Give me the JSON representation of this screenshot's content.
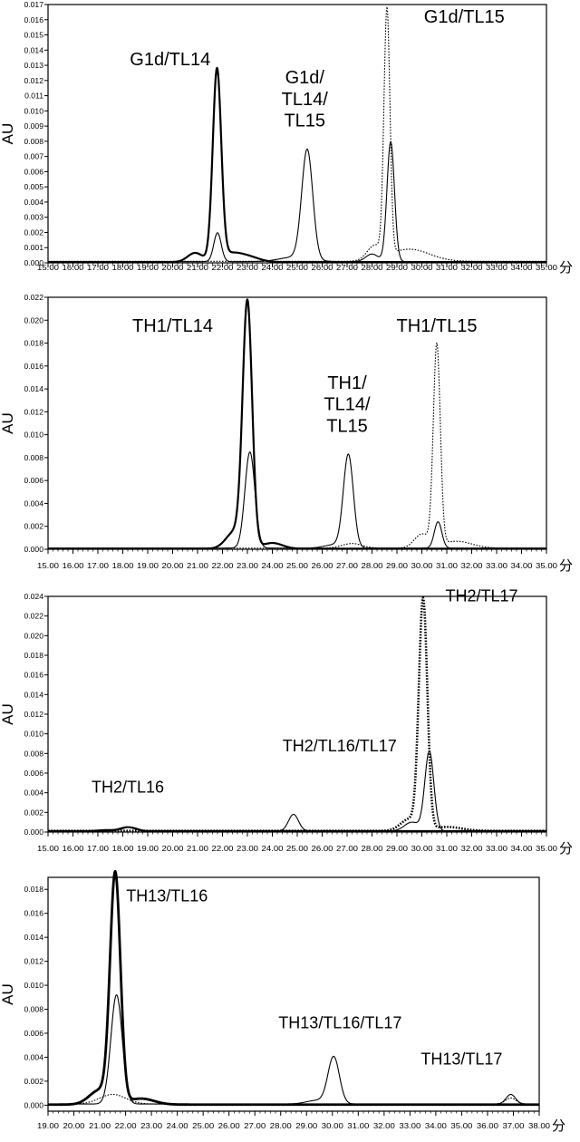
{
  "chart_data": [
    {
      "type": "line",
      "ylabel": "AU",
      "xunit": "分",
      "xlim": [
        15,
        35
      ],
      "ylim": [
        0,
        0.017
      ],
      "xticks": [
        "15.00",
        "16.00",
        "17.00",
        "18.00",
        "19.00",
        "20.00",
        "21.00",
        "22.00",
        "23.00",
        "24.00",
        "25.00",
        "26.00",
        "27.00",
        "28.00",
        "29.00",
        "30.00",
        "31.00",
        "32.00",
        "33.00",
        "34.00",
        "35.00"
      ],
      "yticks": [
        "0.000",
        "0.001",
        "0.002",
        "0.003",
        "0.004",
        "0.005",
        "0.006",
        "0.007",
        "0.008",
        "0.009",
        "0.010",
        "0.011",
        "0.012",
        "0.013",
        "0.014",
        "0.015",
        "0.016",
        "0.017"
      ],
      "annotations": [
        {
          "lines": [
            "G1d/TL14"
          ],
          "x": 19.9,
          "y": 0.013
        },
        {
          "lines": [
            "G1d/",
            "TL14/",
            "TL15"
          ],
          "x": 25.3,
          "y": 0.0118
        },
        {
          "lines": [
            "G1d/TL15"
          ],
          "x": 31.7,
          "y": 0.0158
        }
      ],
      "series": [
        {
          "style": "solid",
          "width": 2.2,
          "baseline": 5e-05,
          "peaks": [
            [
              21.78,
              0.0125,
              0.17
            ],
            [
              20.9,
              0.0006,
              0.3
            ],
            [
              22.4,
              0.0006,
              0.5
            ],
            [
              23.2,
              0.0002,
              0.4
            ]
          ]
        },
        {
          "style": "solid",
          "width": 1.1,
          "baseline": 8e-05,
          "peaks": [
            [
              21.8,
              0.0019,
              0.15
            ],
            [
              25.4,
              0.0072,
              0.22
            ],
            [
              28.75,
              0.0079,
              0.15
            ],
            [
              28.0,
              0.0005,
              0.25
            ],
            [
              24.9,
              0.0003,
              0.6
            ]
          ]
        },
        {
          "style": "dotted",
          "width": 1.1,
          "baseline": 0.0001,
          "peaks": [
            [
              28.6,
              0.0161,
              0.12
            ],
            [
              28.1,
              0.0009,
              0.3
            ],
            [
              29.5,
              0.0008,
              0.8
            ]
          ]
        }
      ]
    },
    {
      "type": "line",
      "ylabel": "AU",
      "xunit": "分",
      "xlim": [
        15,
        35
      ],
      "ylim": [
        0,
        0.022
      ],
      "xticks": [
        "15.00",
        "16.00",
        "17.00",
        "18.00",
        "19.00",
        "20.00",
        "21.00",
        "22.00",
        "23.00",
        "24.00",
        "25.00",
        "26.00",
        "27.00",
        "28.00",
        "29.00",
        "30.00",
        "31.00",
        "32.00",
        "33.00",
        "34.00",
        "35.00"
      ],
      "yticks": [
        "0.000",
        "0.002",
        "0.004",
        "0.006",
        "0.008",
        "0.010",
        "0.012",
        "0.014",
        "0.016",
        "0.018",
        "0.020",
        "0.022"
      ],
      "annotations": [
        {
          "lines": [
            "TH1/TL14"
          ],
          "x": 20.0,
          "y": 0.019
        },
        {
          "lines": [
            "TH1/",
            "TL14/",
            "TL15"
          ],
          "x": 27.0,
          "y": 0.014
        },
        {
          "lines": [
            "TH1/TL15"
          ],
          "x": 30.6,
          "y": 0.019
        }
      ],
      "series": [
        {
          "style": "solid",
          "width": 2.2,
          "baseline": 5e-05,
          "peaks": [
            [
              23.0,
              0.0212,
              0.19
            ],
            [
              22.5,
              0.0015,
              0.35
            ],
            [
              24.0,
              0.0005,
              0.4
            ]
          ]
        },
        {
          "style": "solid",
          "width": 1.1,
          "baseline": 0.0001,
          "peaks": [
            [
              23.1,
              0.0084,
              0.2
            ],
            [
              27.05,
              0.0081,
              0.2
            ],
            [
              30.65,
              0.0023,
              0.15
            ],
            [
              26.5,
              0.0003,
              0.4
            ]
          ]
        },
        {
          "style": "dotted",
          "width": 1.1,
          "baseline": 0.0001,
          "peaks": [
            [
              30.6,
              0.0175,
              0.14
            ],
            [
              30.0,
              0.0012,
              0.3
            ],
            [
              31.4,
              0.0006,
              0.6
            ],
            [
              27.2,
              0.0004,
              0.4
            ]
          ]
        }
      ]
    },
    {
      "type": "line",
      "ylabel": "AU",
      "xunit": "分",
      "xlim": [
        15,
        35
      ],
      "ylim": [
        0,
        0.024
      ],
      "xticks": [
        "15.00",
        "16.00",
        "17.00",
        "18.00",
        "19.00",
        "20.00",
        "21.00",
        "22.00",
        "23.00",
        "24.00",
        "25.00",
        "26.00",
        "27.00",
        "28.00",
        "29.00",
        "30.00",
        "31.00",
        "32.00",
        "33.00",
        "34.00",
        "35.00"
      ],
      "yticks": [
        "0.000",
        "0.002",
        "0.004",
        "0.006",
        "0.008",
        "0.010",
        "0.012",
        "0.014",
        "0.016",
        "0.018",
        "0.020",
        "0.022",
        "0.024"
      ],
      "annotations": [
        {
          "lines": [
            "TH2/TL16"
          ],
          "x": 18.2,
          "y": 0.004
        },
        {
          "lines": [
            "TH2/TL16/TL17"
          ],
          "x": 26.7,
          "y": 0.0082
        },
        {
          "lines": [
            "TH2/TL17"
          ],
          "x": 32.4,
          "y": 0.0235
        }
      ],
      "series": [
        {
          "style": "dotted",
          "width": 2.6,
          "baseline": 0.00012,
          "peaks": [
            [
              30.05,
              0.0233,
              0.17
            ],
            [
              29.5,
              0.0012,
              0.35
            ],
            [
              31.0,
              0.0004,
              0.6
            ]
          ]
        },
        {
          "style": "solid",
          "width": 1.1,
          "baseline": 0.0001,
          "peaks": [
            [
              30.3,
              0.0081,
              0.18
            ],
            [
              24.85,
              0.0017,
              0.2
            ],
            [
              18.3,
              0.0004,
              0.3
            ],
            [
              29.6,
              0.0009,
              0.3
            ]
          ]
        },
        {
          "style": "solid",
          "width": 2.0,
          "baseline": 0.0001,
          "peaks": [
            [
              18.2,
              0.0004,
              0.3
            ],
            [
              17.3,
              0.0001,
              0.3
            ]
          ]
        }
      ]
    },
    {
      "type": "line",
      "ylabel": "AU",
      "xunit": "分",
      "xlim": [
        19,
        38
      ],
      "ylim": [
        -0.0005,
        0.019
      ],
      "xticks": [
        "19.00",
        "20.00",
        "21.00",
        "22.00",
        "23.00",
        "24.00",
        "25.00",
        "26.00",
        "27.00",
        "28.00",
        "29.00",
        "30.00",
        "31.00",
        "32.00",
        "33.00",
        "34.00",
        "35.00",
        "36.00",
        "37.00",
        "38.00"
      ],
      "yticks": [
        "0.000",
        "0.002",
        "0.004",
        "0.006",
        "0.008",
        "0.010",
        "0.012",
        "0.014",
        "0.016",
        "0.018"
      ],
      "annotations": [
        {
          "lines": [
            "TH13/TL16"
          ],
          "x": 23.6,
          "y": 0.017
        },
        {
          "lines": [
            "TH13/TL16/TL17"
          ],
          "x": 30.3,
          "y": 0.0064
        },
        {
          "lines": [
            "TH13/TL17"
          ],
          "x": 35.0,
          "y": 0.0034
        }
      ],
      "series": [
        {
          "style": "solid",
          "width": 2.8,
          "baseline": 5e-05,
          "peaks": [
            [
              21.6,
              0.019,
              0.2
            ],
            [
              21.0,
              0.0012,
              0.4
            ],
            [
              22.6,
              0.0005,
              0.5
            ]
          ]
        },
        {
          "style": "solid",
          "width": 1.1,
          "baseline": 0.0001,
          "peaks": [
            [
              21.65,
              0.0091,
              0.22
            ],
            [
              30.05,
              0.0039,
              0.22
            ],
            [
              36.9,
              0.0008,
              0.18
            ],
            [
              29.4,
              0.0003,
              0.4
            ]
          ]
        },
        {
          "style": "dotted",
          "width": 1.1,
          "baseline": 0.0001,
          "peaks": [
            [
              36.9,
              0.0005,
              0.2
            ],
            [
              21.5,
              0.0008,
              0.5
            ]
          ]
        }
      ]
    }
  ]
}
